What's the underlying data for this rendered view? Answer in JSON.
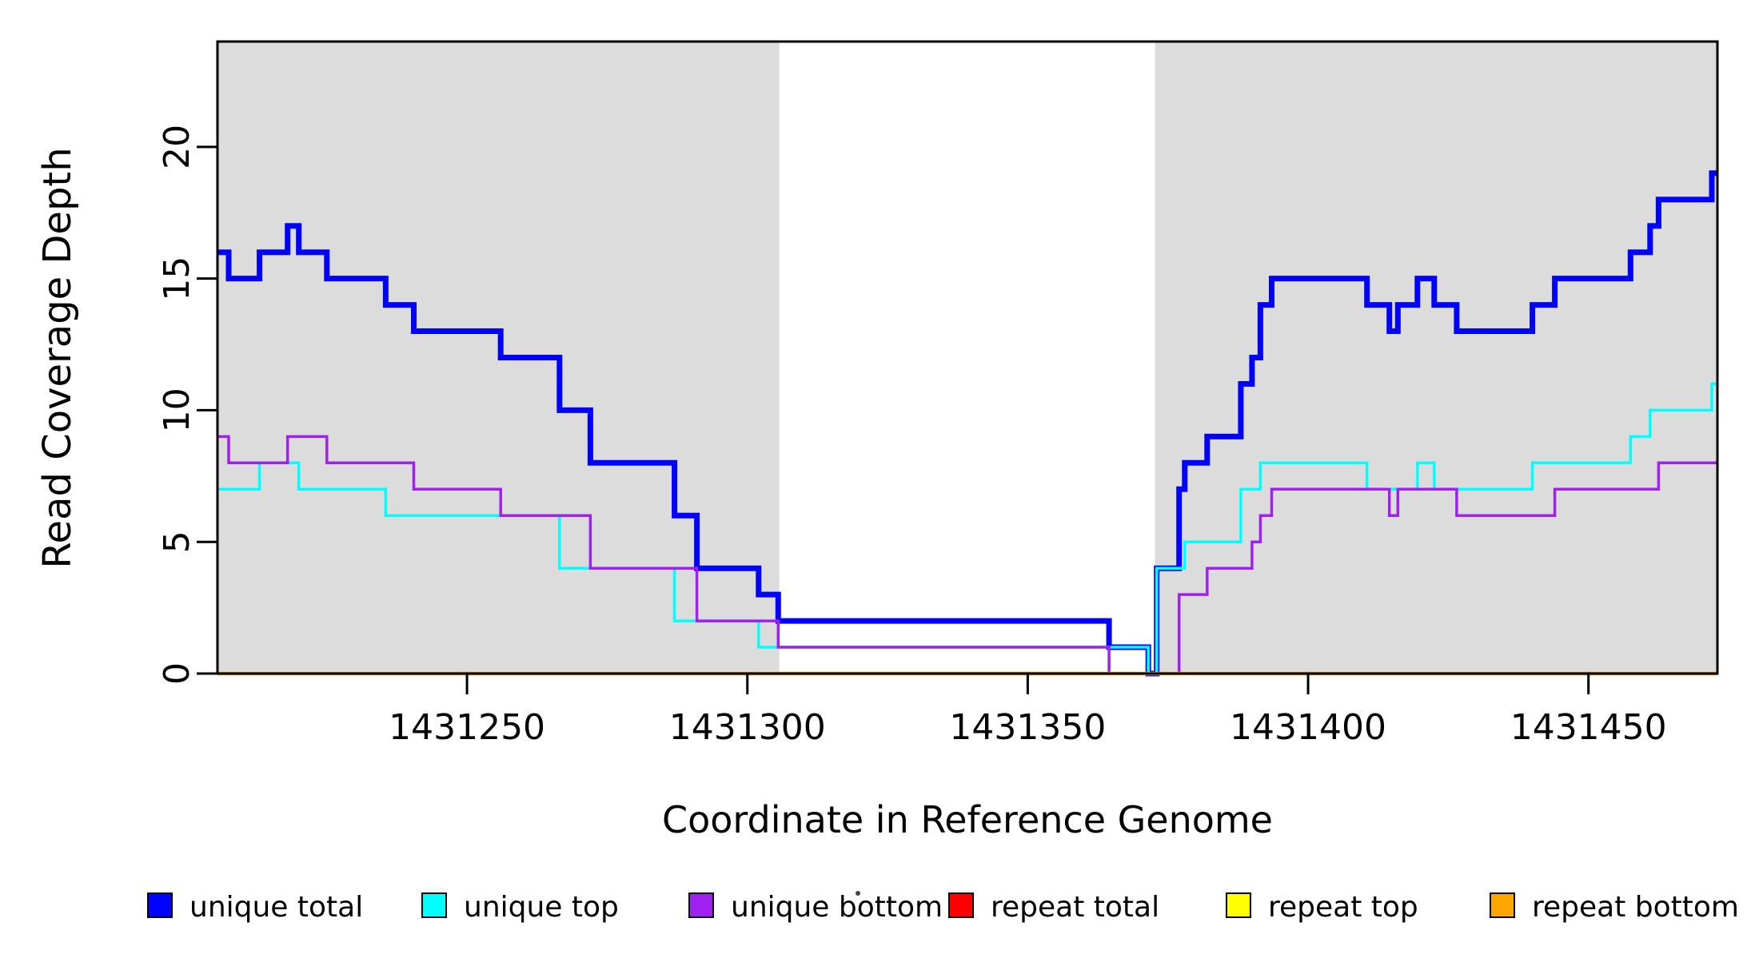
{
  "chart_data": {
    "type": "line",
    "subtype": "step",
    "title": "",
    "xlabel": "Coordinate in Reference Genome",
    "ylabel": "Read Coverage Depth",
    "xlim": [
      1431205.5,
      1431473
    ],
    "ylim": [
      0,
      24
    ],
    "xticks": [
      1431250,
      1431300,
      1431350,
      1431400,
      1431450
    ],
    "yticks": [
      0,
      5,
      10,
      15,
      20
    ],
    "grid": false,
    "shade_color": "#DCDCDC",
    "shaded_regions": [
      [
        1431205.5,
        1431305.7
      ],
      [
        1431372.7,
        1431473.0
      ]
    ],
    "legend_position": "bottom",
    "series": [
      {
        "name": "unique total",
        "color": "#0000FF",
        "linewidth": 7,
        "points": [
          [
            1431205.5,
            16
          ],
          [
            1431207.5,
            15
          ],
          [
            1431213,
            16
          ],
          [
            1431218,
            17
          ],
          [
            1431220,
            16
          ],
          [
            1431225,
            15
          ],
          [
            1431235.5,
            14
          ],
          [
            1431240.5,
            13
          ],
          [
            1431256,
            12
          ],
          [
            1431266.5,
            10
          ],
          [
            1431272,
            8
          ],
          [
            1431287,
            6
          ],
          [
            1431291,
            4
          ],
          [
            1431302,
            3
          ],
          [
            1431305.5,
            2
          ],
          [
            1431364.5,
            1
          ],
          [
            1431371.5,
            0
          ],
          [
            1431373,
            4
          ],
          [
            1431377,
            7
          ],
          [
            1431378,
            8
          ],
          [
            1431382,
            9
          ],
          [
            1431388,
            11
          ],
          [
            1431390,
            12
          ],
          [
            1431391.5,
            14
          ],
          [
            1431393.5,
            15
          ],
          [
            1431410.5,
            14
          ],
          [
            1431414.5,
            13
          ],
          [
            1431416,
            14
          ],
          [
            1431419.5,
            15
          ],
          [
            1431422.5,
            14
          ],
          [
            1431426.5,
            13
          ],
          [
            1431440,
            14
          ],
          [
            1431444,
            15
          ],
          [
            1431457.5,
            16
          ],
          [
            1431461,
            17
          ],
          [
            1431462.5,
            18
          ],
          [
            1431472,
            19
          ]
        ]
      },
      {
        "name": "unique top",
        "color": "#00FFFF",
        "linewidth": 3.5,
        "points": [
          [
            1431205.5,
            7
          ],
          [
            1431213,
            8
          ],
          [
            1431220,
            7
          ],
          [
            1431235.5,
            6
          ],
          [
            1431266.5,
            4
          ],
          [
            1431287,
            2
          ],
          [
            1431302,
            1
          ],
          [
            1431371.5,
            0
          ],
          [
            1431373,
            4
          ],
          [
            1431378,
            5
          ],
          [
            1431388,
            7
          ],
          [
            1431391.5,
            8
          ],
          [
            1431410.5,
            7
          ],
          [
            1431419.5,
            8
          ],
          [
            1431422.5,
            7
          ],
          [
            1431440,
            8
          ],
          [
            1431457.5,
            9
          ],
          [
            1431461,
            10
          ],
          [
            1431472,
            11
          ]
        ]
      },
      {
        "name": "unique bottom",
        "color": "#A020F0",
        "linewidth": 3.5,
        "points": [
          [
            1431205.5,
            9
          ],
          [
            1431207.5,
            8
          ],
          [
            1431218,
            9
          ],
          [
            1431225,
            8
          ],
          [
            1431240.5,
            7
          ],
          [
            1431256,
            6
          ],
          [
            1431272,
            4
          ],
          [
            1431291,
            2
          ],
          [
            1431305.5,
            1
          ],
          [
            1431364.5,
            0
          ],
          [
            1431377,
            3
          ],
          [
            1431382,
            4
          ],
          [
            1431390,
            5
          ],
          [
            1431391.5,
            6
          ],
          [
            1431393.5,
            7
          ],
          [
            1431414.5,
            6
          ],
          [
            1431416,
            7
          ],
          [
            1431426.5,
            6
          ],
          [
            1431444,
            7
          ],
          [
            1431462.5,
            8
          ]
        ]
      },
      {
        "name": "repeat total",
        "color": "#FF0000",
        "linewidth": 3.5,
        "points": [
          [
            1431205.5,
            0
          ]
        ]
      },
      {
        "name": "repeat top",
        "color": "#FFFF00",
        "linewidth": 3.5,
        "points": [
          [
            1431205.5,
            0
          ]
        ]
      },
      {
        "name": "repeat bottom",
        "color": "#FFA500",
        "linewidth": 4.5,
        "points": [
          [
            1431205.5,
            0
          ]
        ]
      }
    ],
    "legend": [
      {
        "label": "unique total",
        "color": "#0000FF"
      },
      {
        "label": "unique top",
        "color": "#00FFFF"
      },
      {
        "label": "unique bottom",
        "color": "#A020F0"
      },
      {
        "label": "repeat total",
        "color": "#FF0000"
      },
      {
        "label": "repeat top",
        "color": "#FFFF00"
      },
      {
        "label": "repeat bottom",
        "color": "#FFA500"
      }
    ]
  },
  "style": {
    "axis_color": "#000000",
    "background": "#FFFFFF"
  }
}
